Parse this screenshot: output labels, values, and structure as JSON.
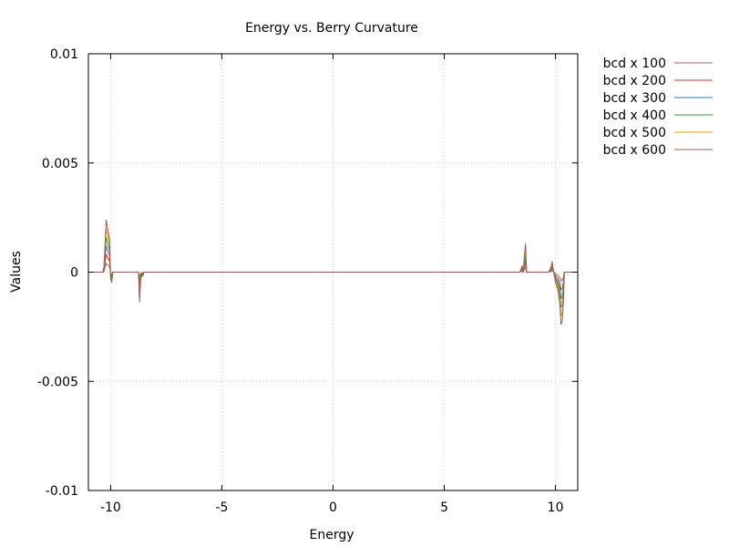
{
  "chart_data": {
    "type": "line",
    "title": "Energy vs. Berry Curvature",
    "xlabel": "Energy",
    "ylabel": "Values",
    "xlim": [
      -11,
      11
    ],
    "ylim": [
      -0.01,
      0.01
    ],
    "xticks": [
      -10,
      -5,
      0,
      5,
      10
    ],
    "xtick_labels": [
      "-10",
      "-5",
      "0",
      "5",
      "10"
    ],
    "yticks": [
      -0.01,
      -0.005,
      0,
      0.005,
      0.01
    ],
    "ytick_labels": [
      "-0.01",
      "-0.005",
      "0",
      "0.005",
      "0.01"
    ],
    "grid": true,
    "legend_position": "outside-right",
    "base_x": [
      -11,
      -10.35,
      -10.3,
      -10.2,
      -10.1,
      -10.05,
      -10.0,
      -9.95,
      -9.9,
      -9.85,
      -9.8,
      -8.75,
      -8.7,
      -8.65,
      -8.6,
      -8.55,
      -8.5,
      -8.45,
      -8.4,
      8.4,
      8.5,
      8.55,
      8.6,
      8.65,
      8.7,
      8.75,
      9.7,
      9.8,
      9.85,
      9.9,
      10.0,
      10.1,
      10.2,
      10.25,
      10.3,
      10.35,
      10.4,
      11
    ],
    "base_y": [
      0,
      0,
      4e-05,
      0.0004,
      0.0003,
      0.00025,
      -5e-05,
      -8e-05,
      0,
      0,
      0,
      0,
      -0.00023,
      -5e-05,
      -3e-05,
      -3e-05,
      0,
      0,
      0,
      0,
      5e-05,
      0,
      0.00012,
      0.00022,
      0,
      0,
      0,
      4e-05,
      8e-05,
      2e-05,
      -8e-05,
      -0.00013,
      -0.00025,
      -0.0004,
      -0.00038,
      -0.00025,
      0,
      0
    ],
    "series": [
      {
        "name": "bcd x 100",
        "scale": 1,
        "color": "#b06060"
      },
      {
        "name": "bcd x 200",
        "scale": 2,
        "color": "#c0392b"
      },
      {
        "name": "bcd x 300",
        "scale": 3,
        "color": "#2e75b6"
      },
      {
        "name": "bcd x 400",
        "scale": 4,
        "color": "#2ca02c"
      },
      {
        "name": "bcd x 500",
        "scale": 5,
        "color": "#e6a100"
      },
      {
        "name": "bcd x 600",
        "scale": 6,
        "color": "#9b5a5a"
      }
    ]
  }
}
